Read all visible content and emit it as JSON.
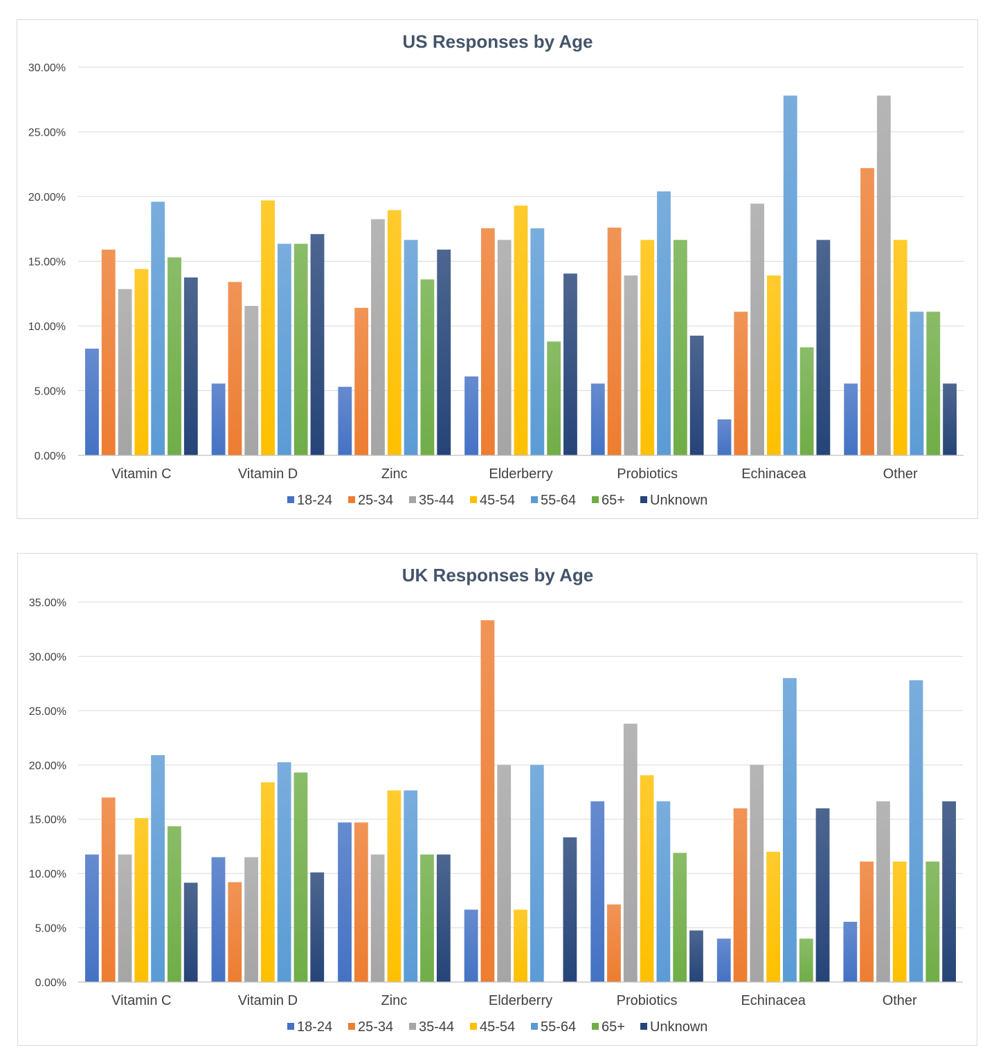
{
  "chart_data": [
    {
      "type": "bar",
      "title": "US Responses by Age",
      "xlabel": "",
      "ylabel": "",
      "ylim": [
        0,
        0.3
      ],
      "ytick_step": 0.05,
      "ytick_labels": [
        "0.00%",
        "5.00%",
        "10.00%",
        "15.00%",
        "20.00%",
        "25.00%",
        "30.00%"
      ],
      "grid": true,
      "legend": "bottom",
      "categories": [
        "Vitamin C",
        "Vitamin D",
        "Zinc",
        "Elderberry",
        "Probiotics",
        "Echinacea",
        "Other"
      ],
      "series": [
        {
          "name": "18-24",
          "color": "#4472c4",
          "values": [
            0.0825,
            0.0555,
            0.053,
            0.061,
            0.0555,
            0.0278,
            0.0555
          ]
        },
        {
          "name": "25-34",
          "color": "#ed7d31",
          "values": [
            0.159,
            0.134,
            0.114,
            0.1755,
            0.176,
            0.111,
            0.222
          ]
        },
        {
          "name": "35-44",
          "color": "#a5a5a5",
          "values": [
            0.1285,
            0.1155,
            0.1825,
            0.1665,
            0.139,
            0.1945,
            0.278
          ]
        },
        {
          "name": "45-54",
          "color": "#ffc000",
          "values": [
            0.144,
            0.197,
            0.1895,
            0.193,
            0.1665,
            0.139,
            0.1665
          ]
        },
        {
          "name": "55-64",
          "color": "#5b9bd5",
          "values": [
            0.196,
            0.1635,
            0.1665,
            0.1755,
            0.204,
            0.278,
            0.111
          ]
        },
        {
          "name": "65+",
          "color": "#70ad47",
          "values": [
            0.153,
            0.1635,
            0.136,
            0.088,
            0.1665,
            0.0835,
            0.111
          ]
        },
        {
          "name": "Unknown",
          "color": "#264478",
          "values": [
            0.1375,
            0.171,
            0.159,
            0.1405,
            0.0925,
            0.1665,
            0.0555
          ]
        }
      ]
    },
    {
      "type": "bar",
      "title": "UK Responses by Age",
      "xlabel": "",
      "ylabel": "",
      "ylim": [
        0,
        0.35
      ],
      "ytick_step": 0.05,
      "ytick_labels": [
        "0.00%",
        "5.00%",
        "10.00%",
        "15.00%",
        "20.00%",
        "25.00%",
        "30.00%",
        "35.00%"
      ],
      "grid": true,
      "legend": "bottom",
      "categories": [
        "Vitamin C",
        "Vitamin D",
        "Zinc",
        "Elderberry",
        "Probiotics",
        "Echinacea",
        "Other"
      ],
      "series": [
        {
          "name": "18-24",
          "color": "#4472c4",
          "values": [
            0.1175,
            0.115,
            0.147,
            0.0667,
            0.1665,
            0.04,
            0.0555
          ]
        },
        {
          "name": "25-34",
          "color": "#ed7d31",
          "values": [
            0.17,
            0.092,
            0.147,
            0.3333,
            0.0715,
            0.16,
            0.111
          ]
        },
        {
          "name": "35-44",
          "color": "#a5a5a5",
          "values": [
            0.1175,
            0.115,
            0.1175,
            0.2,
            0.238,
            0.2,
            0.1665
          ]
        },
        {
          "name": "45-54",
          "color": "#ffc000",
          "values": [
            0.151,
            0.184,
            0.1765,
            0.0667,
            0.1905,
            0.12,
            0.111
          ]
        },
        {
          "name": "55-64",
          "color": "#5b9bd5",
          "values": [
            0.209,
            0.2025,
            0.1765,
            0.2,
            0.1665,
            0.28,
            0.278
          ]
        },
        {
          "name": "65+",
          "color": "#70ad47",
          "values": [
            0.1435,
            0.193,
            0.1175,
            0.0,
            0.119,
            0.04,
            0.111
          ]
        },
        {
          "name": "Unknown",
          "color": "#264478",
          "values": [
            0.0915,
            0.101,
            0.1175,
            0.1333,
            0.0475,
            0.16,
            0.1665
          ]
        }
      ]
    }
  ]
}
